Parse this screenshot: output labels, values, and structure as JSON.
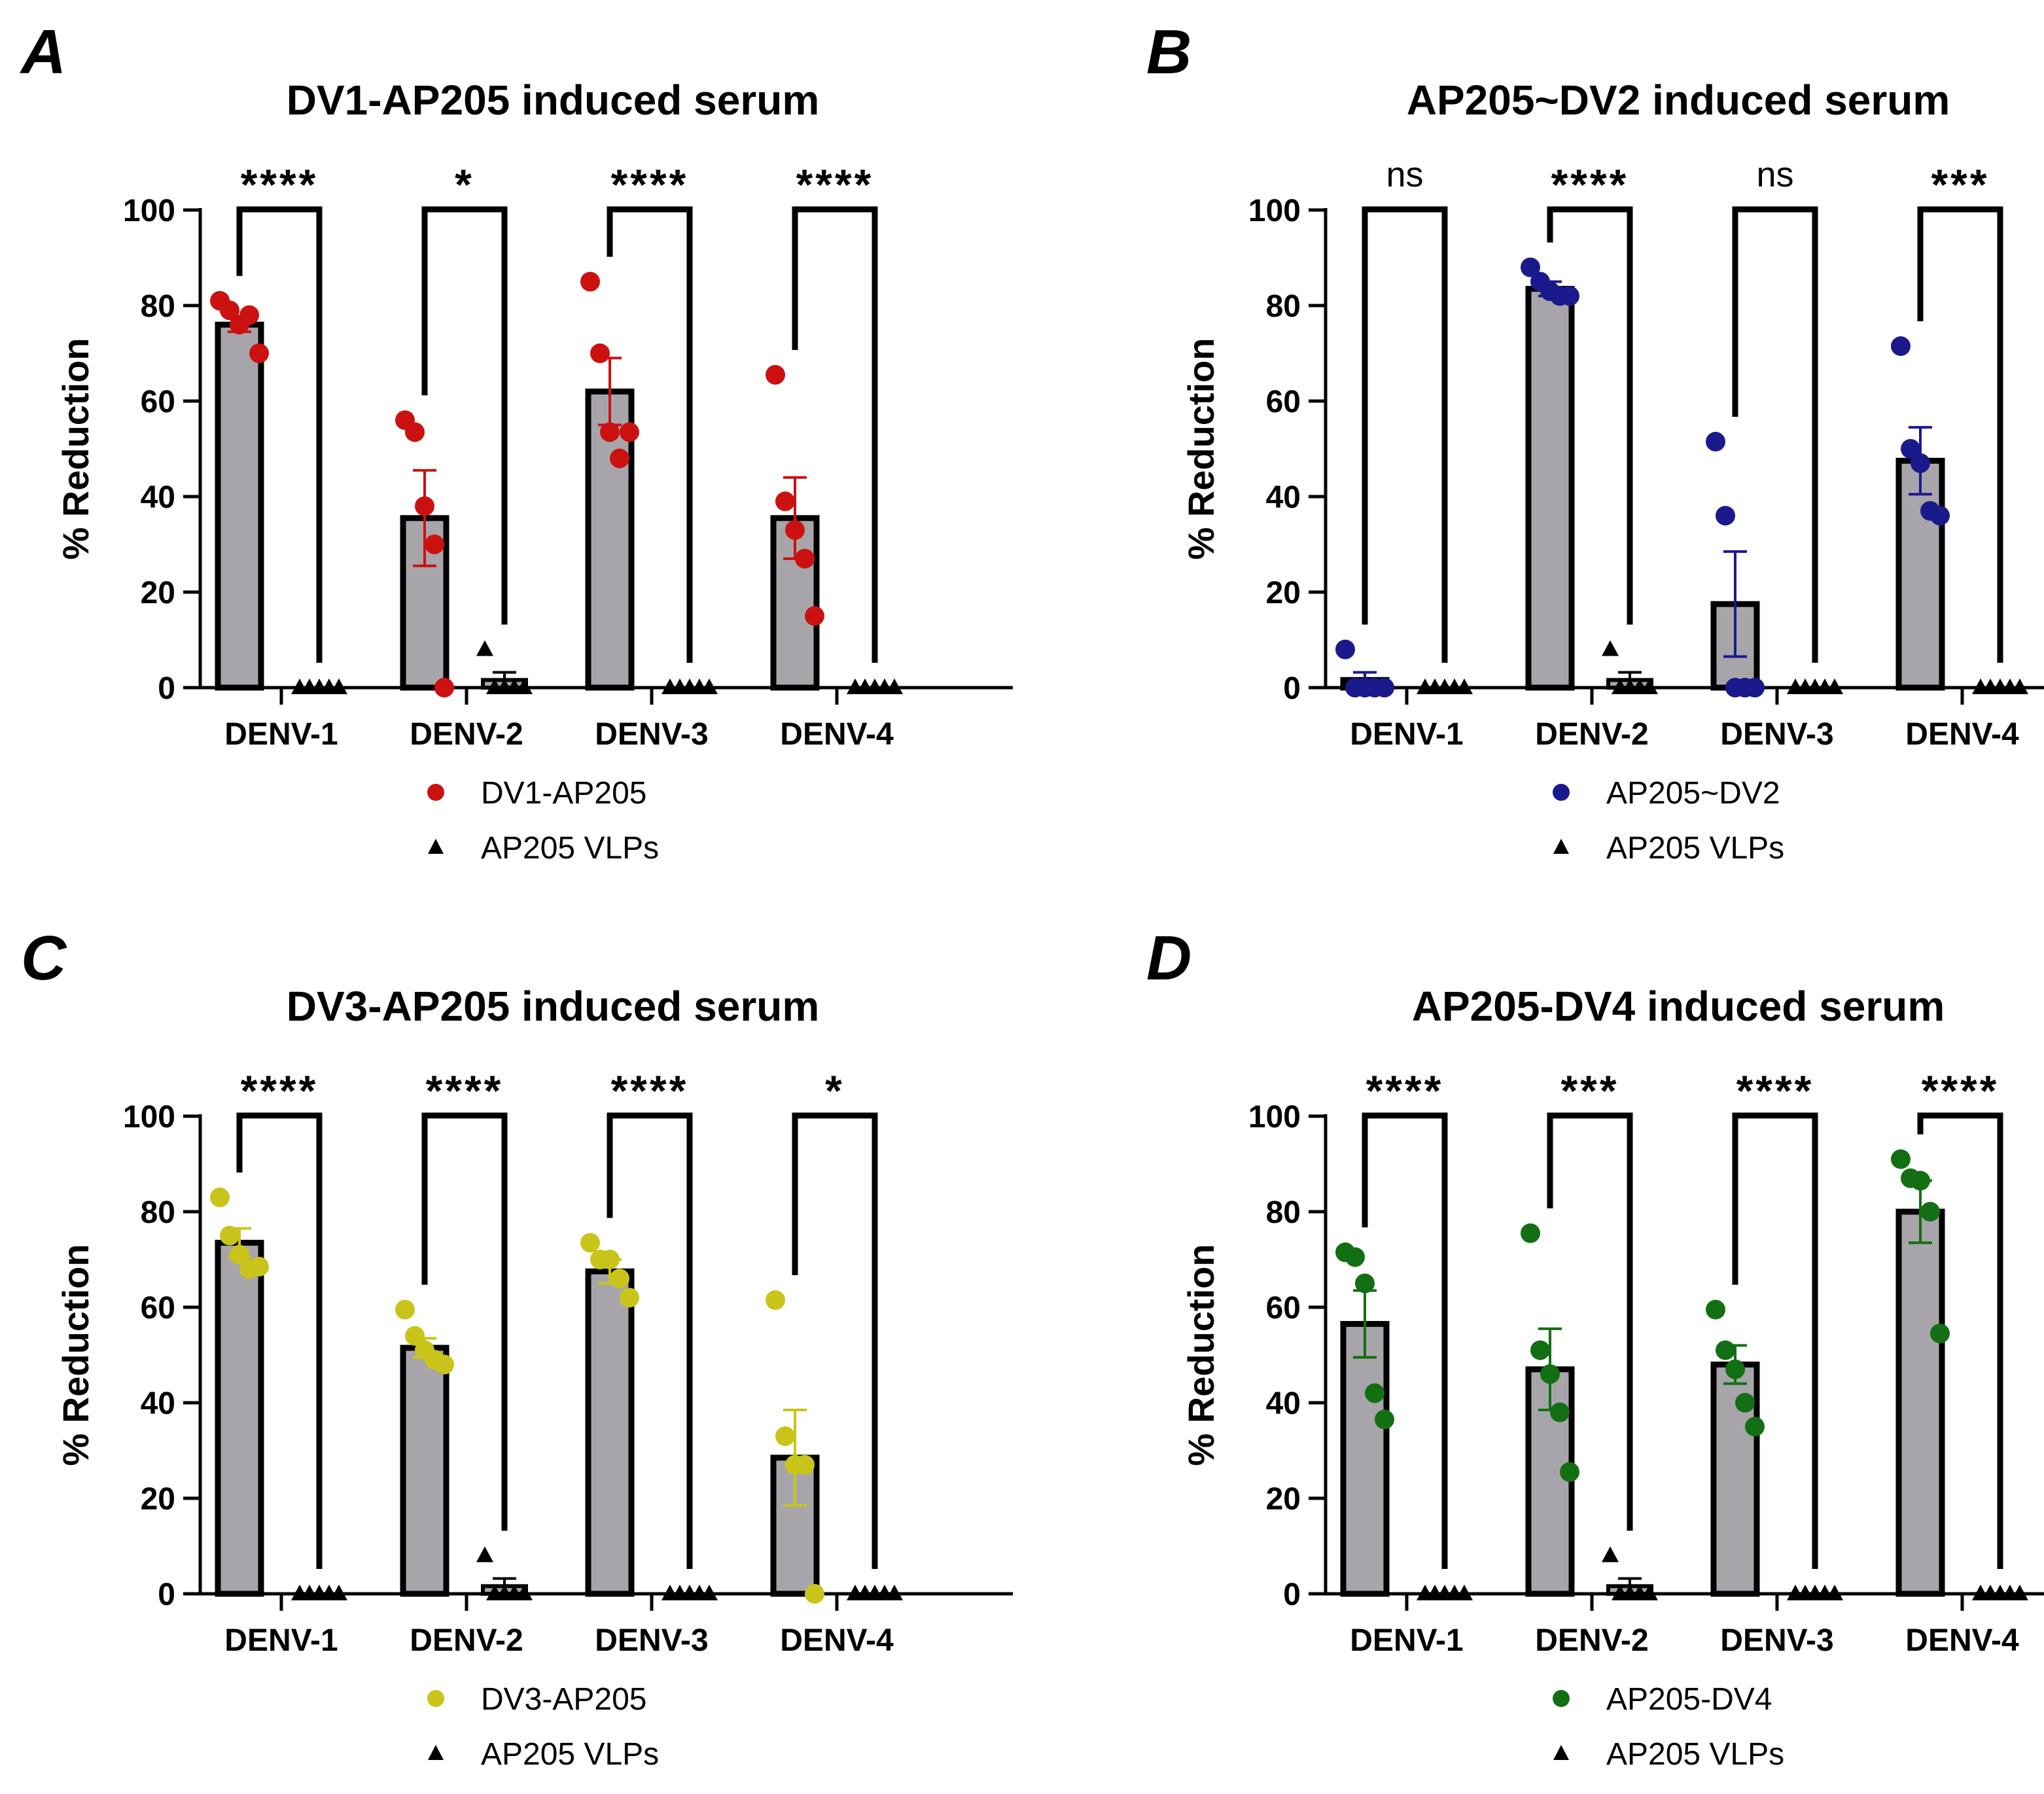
{
  "figure": {
    "colors": {
      "bar_fill": "#a7a5aa",
      "bar_stroke": "#000000",
      "control": "#000000"
    },
    "control_marker_icon": "triangle-marker",
    "vaccine_marker_icon": "circle-marker"
  },
  "chart_data": [
    {
      "type": "bar",
      "panel_letter": "A",
      "title": "DV1-AP205 induced serum",
      "xlabel": "",
      "ylabel": "% Reduction",
      "ylim": [
        0,
        100
      ],
      "yticks": [
        0,
        20,
        40,
        60,
        80,
        100
      ],
      "categories": [
        "DENV-1",
        "DENV-2",
        "DENV-3",
        "DENV-4"
      ],
      "grid": false,
      "legend_position": "bottom-center",
      "series": [
        {
          "name": "DV1-AP205",
          "color": "#cc1111",
          "marker": "circle",
          "means": [
            76,
            35.5,
            62,
            35.5
          ],
          "sem": [
            1.5,
            10,
            7,
            8.5
          ],
          "points": [
            [
              81,
              79,
              76,
              78,
              70
            ],
            [
              56,
              53.5,
              38,
              30,
              0
            ],
            [
              85,
              70,
              53.5,
              48,
              53.5
            ],
            [
              65.5,
              39,
              33,
              27,
              15
            ]
          ]
        },
        {
          "name": "AP205 VLPs",
          "color": "#000000",
          "marker": "triangle",
          "means": [
            0,
            1.6,
            0,
            0
          ],
          "sem": [
            0,
            1.6,
            0,
            0
          ],
          "points": [
            [
              0,
              0,
              0,
              0,
              0
            ],
            [
              8,
              0,
              0,
              0,
              0
            ],
            [
              0,
              0,
              0,
              0,
              0
            ],
            [
              0,
              0,
              0,
              0,
              0
            ]
          ]
        }
      ],
      "significance": [
        "****",
        "*",
        "****",
        "****"
      ]
    },
    {
      "type": "bar",
      "panel_letter": "B",
      "title": "AP205~DV2 induced serum",
      "xlabel": "",
      "ylabel": "% Reduction",
      "ylim": [
        0,
        100
      ],
      "yticks": [
        0,
        20,
        40,
        60,
        80,
        100
      ],
      "categories": [
        "DENV-1",
        "DENV-2",
        "DENV-3",
        "DENV-4"
      ],
      "grid": false,
      "legend_position": "bottom-center",
      "series": [
        {
          "name": "AP205~DV2",
          "color": "#1a1a8c",
          "marker": "circle",
          "means": [
            1.6,
            83.5,
            17.5,
            47.5
          ],
          "sem": [
            1.6,
            1.5,
            11,
            7
          ],
          "points": [
            [
              8,
              0,
              0,
              0,
              0
            ],
            [
              88,
              85,
              83,
              82,
              82
            ],
            [
              51.5,
              36,
              0,
              0,
              0
            ],
            [
              71.5,
              50,
              47,
              37,
              36
            ]
          ]
        },
        {
          "name": "AP205 VLPs",
          "color": "#000000",
          "marker": "triangle",
          "means": [
            0,
            1.6,
            0,
            0
          ],
          "sem": [
            0,
            1.6,
            0,
            0
          ],
          "points": [
            [
              0,
              0,
              0,
              0,
              0
            ],
            [
              8,
              0,
              0,
              0,
              0
            ],
            [
              0,
              0,
              0,
              0,
              0
            ],
            [
              0,
              0,
              0,
              0,
              0
            ]
          ]
        }
      ],
      "significance": [
        "ns",
        "****",
        "ns",
        "***"
      ]
    },
    {
      "type": "bar",
      "panel_letter": "C",
      "title": "DV3-AP205 induced serum",
      "xlabel": "",
      "ylabel": "% Reduction",
      "ylim": [
        0,
        100
      ],
      "yticks": [
        0,
        20,
        40,
        60,
        80,
        100
      ],
      "categories": [
        "DENV-1",
        "DENV-2",
        "DENV-3",
        "DENV-4"
      ],
      "grid": false,
      "legend_position": "bottom-center",
      "series": [
        {
          "name": "DV3-AP205",
          "color": "#c9c41a",
          "marker": "circle",
          "means": [
            73.5,
            51.5,
            67.5,
            28.5
          ],
          "sem": [
            3,
            2,
            2.5,
            10
          ],
          "points": [
            [
              83,
              75,
              71,
              68,
              68.5
            ],
            [
              59.5,
              54,
              51,
              49,
              48
            ],
            [
              73.5,
              70,
              70,
              66,
              62
            ],
            [
              61.5,
              33,
              27,
              27,
              0
            ]
          ]
        },
        {
          "name": "AP205 VLPs",
          "color": "#000000",
          "marker": "triangle",
          "means": [
            0,
            1.6,
            0,
            0
          ],
          "sem": [
            0,
            1.6,
            0,
            0
          ],
          "points": [
            [
              0,
              0,
              0,
              0,
              0
            ],
            [
              8,
              0,
              0,
              0,
              0
            ],
            [
              0,
              0,
              0,
              0,
              0
            ],
            [
              0,
              0,
              0,
              0,
              0
            ]
          ]
        }
      ],
      "significance": [
        "****",
        "****",
        "****",
        "*"
      ]
    },
    {
      "type": "bar",
      "panel_letter": "D",
      "title": "AP205-DV4 induced serum",
      "xlabel": "",
      "ylabel": "% Reduction",
      "ylim": [
        0,
        100
      ],
      "yticks": [
        0,
        20,
        40,
        60,
        80,
        100
      ],
      "categories": [
        "DENV-1",
        "DENV-2",
        "DENV-3",
        "DENV-4"
      ],
      "grid": false,
      "legend_position": "bottom-center",
      "series": [
        {
          "name": "AP205-DV4",
          "color": "#136f13",
          "marker": "circle",
          "means": [
            56.5,
            47,
            48,
            80
          ],
          "sem": [
            7,
            8.5,
            4,
            6.5
          ],
          "points": [
            [
              71.5,
              70.5,
              65,
              42,
              36.5
            ],
            [
              75.5,
              51,
              46,
              38,
              25.5
            ],
            [
              59.5,
              51,
              47,
              40,
              35
            ],
            [
              91,
              87,
              86.5,
              80,
              54.5
            ]
          ]
        },
        {
          "name": "AP205 VLPs",
          "color": "#000000",
          "marker": "triangle",
          "means": [
            0,
            1.6,
            0,
            0
          ],
          "sem": [
            0,
            1.6,
            0,
            0
          ],
          "points": [
            [
              0,
              0,
              0,
              0,
              0
            ],
            [
              8,
              0,
              0,
              0,
              0
            ],
            [
              0,
              0,
              0,
              0,
              0
            ],
            [
              0,
              0,
              0,
              0,
              0
            ]
          ]
        }
      ],
      "significance": [
        "****",
        "***",
        "****",
        "****"
      ]
    }
  ]
}
